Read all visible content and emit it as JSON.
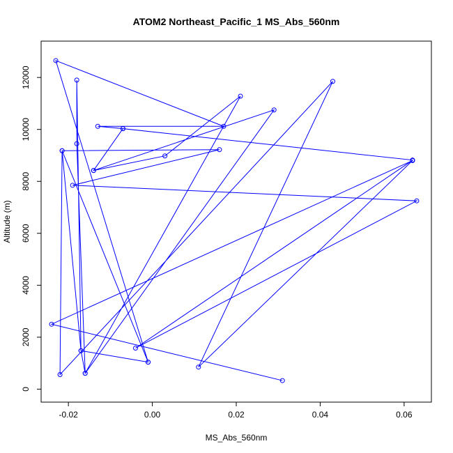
{
  "chart_data": {
    "type": "line",
    "title": "ATOM2 Northeast_Pacific_1 MS_Abs_560nm",
    "xlabel": "MS_Abs_560nm",
    "ylabel": "Altitude (m)",
    "xlim": [
      -0.0265,
      0.0665
    ],
    "ylim": [
      -500,
      13400
    ],
    "x_ticks": [
      -0.02,
      0.0,
      0.02,
      0.04,
      0.06
    ],
    "x_tick_labels": [
      "-0.02",
      "0.00",
      "0.02",
      "0.04",
      "0.06"
    ],
    "y_ticks": [
      0,
      2000,
      4000,
      6000,
      8000,
      10000,
      12000
    ],
    "y_tick_labels": [
      "0",
      "2000",
      "4000",
      "6000",
      "8000",
      "10000",
      "12000"
    ],
    "grid": false,
    "color": "#0000ff",
    "points": [
      {
        "x": 0.031,
        "y": 330
      },
      {
        "x": -0.024,
        "y": 2500
      },
      {
        "x": 0.062,
        "y": 8800
      },
      {
        "x": 0.011,
        "y": 850
      },
      {
        "x": 0.043,
        "y": 11850
      },
      {
        "x": -0.022,
        "y": 560
      },
      {
        "x": -0.0215,
        "y": 9180
      },
      {
        "x": -0.017,
        "y": 1480
      },
      {
        "x": -0.018,
        "y": 11900
      },
      {
        "x": -0.018,
        "y": 9450
      },
      {
        "x": -0.016,
        "y": 610
      },
      {
        "x": 0.029,
        "y": 10750
      },
      {
        "x": -0.014,
        "y": 8420
      },
      {
        "x": -0.007,
        "y": 10030
      },
      {
        "x": 0.062,
        "y": 8820
      },
      {
        "x": 0.062,
        "y": 8810
      },
      {
        "x": -0.004,
        "y": 1580
      },
      {
        "x": 0.063,
        "y": 7250
      },
      {
        "x": -0.019,
        "y": 7850
      },
      {
        "x": 0.016,
        "y": 9220
      },
      {
        "x": -0.0215,
        "y": 9180
      },
      {
        "x": -0.001,
        "y": 1040
      },
      {
        "x": -0.017,
        "y": 1480
      },
      {
        "x": -0.016,
        "y": 610
      },
      {
        "x": 0.021,
        "y": 11280
      },
      {
        "x": 0.003,
        "y": 8980
      },
      {
        "x": -0.014,
        "y": 8420
      },
      {
        "x": -0.007,
        "y": 10030
      },
      {
        "x": -0.013,
        "y": 10120
      },
      {
        "x": 0.017,
        "y": 10120
      },
      {
        "x": -0.023,
        "y": 12650
      },
      {
        "x": -0.001,
        "y": 1040
      }
    ]
  }
}
